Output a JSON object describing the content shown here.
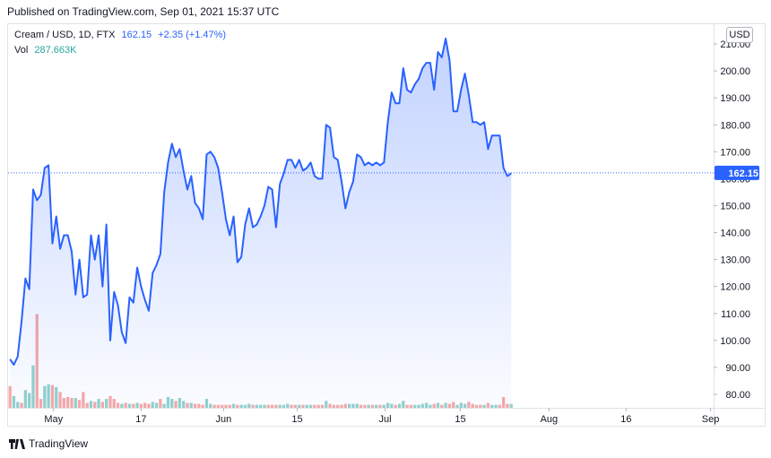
{
  "header": {
    "published": "Published on TradingView.com, Sep 01, 2021 15:37 UTC"
  },
  "legend": {
    "symbol": "Cream / USD, 1D, FTX",
    "last": "162.15",
    "change": "+2.35 (+1.47%)",
    "vol_label": "Vol",
    "vol_value": "287.663K"
  },
  "currency": "USD",
  "footer": {
    "brand": "TradingView"
  },
  "colors": {
    "line": "#2962ff",
    "vol_up": "#26a69a",
    "vol_down": "#ef5350"
  },
  "chart_data": {
    "type": "area",
    "series": [
      {
        "values": [
          93,
          91,
          94,
          107,
          123,
          119,
          156,
          152,
          154,
          164,
          165,
          136,
          146,
          134,
          139,
          139,
          133,
          117,
          130,
          116,
          117,
          139,
          130,
          139,
          120,
          143,
          100,
          118,
          113,
          103,
          99,
          116,
          114,
          127,
          120,
          115,
          111,
          125,
          128,
          132,
          155,
          166,
          173,
          168,
          171,
          163,
          156,
          161,
          151,
          149,
          145,
          169,
          170,
          168,
          164,
          155,
          145,
          139,
          146,
          129,
          131,
          143,
          149,
          142,
          143,
          146,
          150,
          157,
          156,
          142,
          158,
          162,
          167,
          167,
          164,
          167,
          163,
          164,
          166,
          161,
          160,
          160,
          180,
          179,
          168,
          167,
          159,
          149,
          155,
          159,
          169,
          168,
          165,
          166,
          165,
          166,
          165,
          166,
          181,
          192,
          188,
          188,
          201,
          193,
          192,
          195,
          197,
          201,
          203,
          203,
          193,
          207,
          205,
          212,
          204,
          185,
          185,
          193,
          199,
          191,
          181,
          181,
          180,
          181,
          171,
          176,
          176,
          176,
          164,
          161,
          162
        ],
        "last": 162.15
      }
    ],
    "volume_pct": [
      {
        "v": 22,
        "up": false
      },
      {
        "v": 12,
        "up": true
      },
      {
        "v": 6,
        "up": true
      },
      {
        "v": 5,
        "up": false
      },
      {
        "v": 18,
        "up": true
      },
      {
        "v": 15,
        "up": true
      },
      {
        "v": 43,
        "up": true
      },
      {
        "v": 95,
        "up": false
      },
      {
        "v": 9,
        "up": false
      },
      {
        "v": 22,
        "up": true
      },
      {
        "v": 24,
        "up": true
      },
      {
        "v": 23,
        "up": false
      },
      {
        "v": 21,
        "up": true
      },
      {
        "v": 16,
        "up": false
      },
      {
        "v": 10,
        "up": false
      },
      {
        "v": 11,
        "up": false
      },
      {
        "v": 10,
        "up": false
      },
      {
        "v": 10,
        "up": true
      },
      {
        "v": 8,
        "up": false
      },
      {
        "v": 16,
        "up": false
      },
      {
        "v": 5,
        "up": false
      },
      {
        "v": 7,
        "up": true
      },
      {
        "v": 6,
        "up": false
      },
      {
        "v": 9,
        "up": true
      },
      {
        "v": 6,
        "up": false
      },
      {
        "v": 9,
        "up": true
      },
      {
        "v": 12,
        "up": false
      },
      {
        "v": 9,
        "up": false
      },
      {
        "v": 5,
        "up": false
      },
      {
        "v": 4,
        "up": true
      },
      {
        "v": 5,
        "up": false
      },
      {
        "v": 4,
        "up": true
      },
      {
        "v": 4,
        "up": false
      },
      {
        "v": 5,
        "up": true
      },
      {
        "v": 4,
        "up": false
      },
      {
        "v": 5,
        "up": false
      },
      {
        "v": 4,
        "up": false
      },
      {
        "v": 6,
        "up": true
      },
      {
        "v": 5,
        "up": true
      },
      {
        "v": 9,
        "up": false
      },
      {
        "v": 4,
        "up": true
      },
      {
        "v": 11,
        "up": true
      },
      {
        "v": 9,
        "up": true
      },
      {
        "v": 7,
        "up": false
      },
      {
        "v": 10,
        "up": true
      },
      {
        "v": 7,
        "up": true
      },
      {
        "v": 5,
        "up": false
      },
      {
        "v": 5,
        "up": true
      },
      {
        "v": 4,
        "up": false
      },
      {
        "v": 4,
        "up": false
      },
      {
        "v": 3,
        "up": false
      },
      {
        "v": 9,
        "up": true
      },
      {
        "v": 4,
        "up": true
      },
      {
        "v": 3,
        "up": false
      },
      {
        "v": 3,
        "up": false
      },
      {
        "v": 3,
        "up": false
      },
      {
        "v": 3,
        "up": false
      },
      {
        "v": 3,
        "up": false
      },
      {
        "v": 4,
        "up": true
      },
      {
        "v": 3,
        "up": false
      },
      {
        "v": 3,
        "up": true
      },
      {
        "v": 3,
        "up": true
      },
      {
        "v": 4,
        "up": true
      },
      {
        "v": 3,
        "up": false
      },
      {
        "v": 3,
        "up": true
      },
      {
        "v": 3,
        "up": true
      },
      {
        "v": 3,
        "up": true
      },
      {
        "v": 3,
        "up": false
      },
      {
        "v": 3,
        "up": false
      },
      {
        "v": 3,
        "up": false
      },
      {
        "v": 3,
        "up": true
      },
      {
        "v": 3,
        "up": true
      },
      {
        "v": 4,
        "up": true
      },
      {
        "v": 3,
        "up": false
      },
      {
        "v": 3,
        "up": false
      },
      {
        "v": 3,
        "up": true
      },
      {
        "v": 3,
        "up": false
      },
      {
        "v": 3,
        "up": true
      },
      {
        "v": 3,
        "up": true
      },
      {
        "v": 3,
        "up": false
      },
      {
        "v": 3,
        "up": false
      },
      {
        "v": 3,
        "up": false
      },
      {
        "v": 7,
        "up": true
      },
      {
        "v": 4,
        "up": false
      },
      {
        "v": 3,
        "up": false
      },
      {
        "v": 3,
        "up": false
      },
      {
        "v": 3,
        "up": false
      },
      {
        "v": 4,
        "up": false
      },
      {
        "v": 4,
        "up": true
      },
      {
        "v": 4,
        "up": true
      },
      {
        "v": 4,
        "up": true
      },
      {
        "v": 3,
        "up": false
      },
      {
        "v": 3,
        "up": false
      },
      {
        "v": 3,
        "up": true
      },
      {
        "v": 3,
        "up": false
      },
      {
        "v": 3,
        "up": true
      },
      {
        "v": 3,
        "up": false
      },
      {
        "v": 3,
        "up": true
      },
      {
        "v": 5,
        "up": true
      },
      {
        "v": 4,
        "up": true
      },
      {
        "v": 3,
        "up": false
      },
      {
        "v": 4,
        "up": true
      },
      {
        "v": 7,
        "up": true
      },
      {
        "v": 3,
        "up": false
      },
      {
        "v": 3,
        "up": false
      },
      {
        "v": 3,
        "up": true
      },
      {
        "v": 3,
        "up": true
      },
      {
        "v": 4,
        "up": true
      },
      {
        "v": 5,
        "up": true
      },
      {
        "v": 3,
        "up": true
      },
      {
        "v": 4,
        "up": false
      },
      {
        "v": 5,
        "up": true
      },
      {
        "v": 3,
        "up": false
      },
      {
        "v": 5,
        "up": true
      },
      {
        "v": 4,
        "up": false
      },
      {
        "v": 6,
        "up": false
      },
      {
        "v": 3,
        "up": true
      },
      {
        "v": 5,
        "up": true
      },
      {
        "v": 4,
        "up": true
      },
      {
        "v": 6,
        "up": false
      },
      {
        "v": 4,
        "up": false
      },
      {
        "v": 3,
        "up": false
      },
      {
        "v": 3,
        "up": false
      },
      {
        "v": 3,
        "up": true
      },
      {
        "v": 5,
        "up": false
      },
      {
        "v": 3,
        "up": true
      },
      {
        "v": 3,
        "up": true
      },
      {
        "v": 3,
        "up": false
      },
      {
        "v": 11,
        "up": false
      },
      {
        "v": 4,
        "up": false
      },
      {
        "v": 4,
        "up": true
      }
    ],
    "ylim": [
      75,
      217
    ],
    "yticks": [
      "80.00",
      "90.00",
      "100.00",
      "110.00",
      "120.00",
      "130.00",
      "140.00",
      "150.00",
      "160.00",
      "170.00",
      "180.00",
      "190.00",
      "200.00",
      "210.00"
    ],
    "ytick_values": [
      80,
      90,
      100,
      110,
      120,
      130,
      140,
      150,
      160,
      170,
      180,
      190,
      200,
      210
    ],
    "xticks": [
      {
        "label": "May",
        "idx": 11.3
      },
      {
        "label": "17",
        "idx": 34
      },
      {
        "label": "Jun",
        "idx": 55.4
      },
      {
        "label": "15",
        "idx": 74.5
      },
      {
        "label": "Jul",
        "idx": 97.3
      },
      {
        "label": "15",
        "idx": 116.8
      },
      {
        "label": "Aug",
        "idx": 139.8
      },
      {
        "label": "16",
        "idx": 159.8
      },
      {
        "label": "Sep",
        "idx": 181.7
      }
    ],
    "n_days": 183,
    "grid": false,
    "last_price_label": "162.15"
  }
}
